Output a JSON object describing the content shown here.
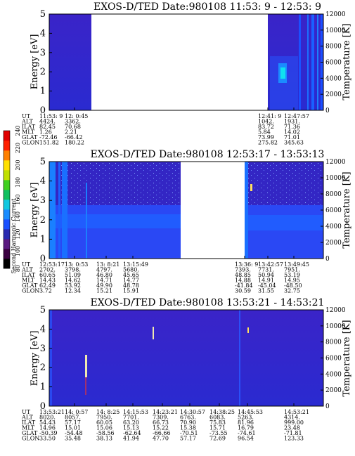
{
  "colorbar": {
    "label": "Second Harmonic Current",
    "ticks": [
      "80",
      "100",
      "120",
      "140",
      "160",
      "180",
      "200",
      "220",
      "240"
    ],
    "colors": [
      "#000000",
      "#3a0040",
      "#5a1a80",
      "#2a2ab0",
      "#1a50ff",
      "#1a8cff",
      "#10c8e0",
      "#10c060",
      "#40d020",
      "#c0e000",
      "#ffe000",
      "#ff8000",
      "#ff2000",
      "#e00000"
    ]
  },
  "panels": [
    {
      "title": "EXOS-D/TED   Date:980108  11:53: 9 - 12:53: 9",
      "ylabel": "Energy [eV]",
      "y2label": "Temperature [K]",
      "yticks": [
        "0",
        "1",
        "2",
        "3",
        "4",
        "5"
      ],
      "y2ticks": [
        "0",
        "2000",
        "4000",
        "6000",
        "8000",
        "10000",
        "12000"
      ],
      "ephem_labels": [
        "UT",
        "ALT",
        "ILAT",
        "MLT",
        "GLAT",
        "GLON"
      ],
      "ephem_cols": [
        [
          "11:53: 9",
          "4424.",
          "82.45",
          "1.26",
          "-72.46",
          "151.82"
        ],
        [
          "12: 0:45",
          "3362.",
          "70.68",
          "2.21",
          "-66.42",
          "180.22"
        ],
        [
          "12:41: 9",
          "1042.",
          "83.72",
          "5.84",
          "73.99",
          "275.82"
        ],
        [
          "12:47:57",
          "1931.",
          "71.36",
          "14.02",
          "71.01",
          "345.63"
        ]
      ]
    },
    {
      "title": "EXOS-D/TED   Date:980108  12:53:17 - 13:53:13",
      "ylabel": "Energy [eV]",
      "y2label": "Temperature [K]",
      "yticks": [
        "0",
        "1",
        "2",
        "3",
        "4",
        "5"
      ],
      "y2ticks": [
        "0",
        "2000",
        "4000",
        "6000",
        "8000",
        "10000",
        "12000"
      ],
      "ephem_labels": [
        "UT",
        "ALT",
        "ILAT",
        "MLT",
        "GLAT",
        "GLON"
      ],
      "ephem_cols": [
        [
          "12:53:17",
          "2702.",
          "60.65",
          "14.43",
          "62.49",
          "3.72"
        ],
        [
          "13: 0:53",
          "3798.",
          "51.09",
          "14.62",
          "53.92",
          "12.34"
        ],
        [
          "13: 8:21",
          "4797.",
          "46.80",
          "14.71",
          "49.90",
          "15.21"
        ],
        [
          "13:15:49",
          "5680.",
          "45.65",
          "14.77",
          "48.78",
          "15.91"
        ],
        [
          "13:36: 9",
          "7393.",
          "48.85",
          "14.88",
          "-41.84",
          "30.59"
        ],
        [
          "13:42:57",
          "7731.",
          "50.94",
          "14.91",
          "-45.04",
          "31.55"
        ],
        [
          "13:49:45",
          "7951.",
          "53.19",
          "14.95",
          "-48.50",
          "32.75"
        ]
      ]
    },
    {
      "title": "EXOS-D/TED   Date:980108  13:53:21 - 14:53:21",
      "ylabel": "Energy [eV]",
      "y2label": "Temperature [K]",
      "yticks": [
        "0",
        "1",
        "2",
        "3",
        "4",
        "5"
      ],
      "y2ticks": [
        "0",
        "2000",
        "4000",
        "6000",
        "8000",
        "10000",
        "12000"
      ],
      "ephem_labels": [
        "UT",
        "ALT",
        "ILAT",
        "MLT",
        "GLAT",
        "GLON"
      ],
      "ephem_cols": [
        [
          "13:53:21",
          "8020.",
          "54.43",
          "14.96",
          "-50.39",
          "33.50"
        ],
        [
          "14: 0:57",
          "8057.",
          "57.17",
          "15.01",
          "-54.48",
          "35.48"
        ],
        [
          "14: 8:25",
          "7950.",
          "60.05",
          "15.06",
          "-58.56",
          "38.13"
        ],
        [
          "14:15:53",
          "7701.",
          "63.20",
          "15.13",
          "-62.64",
          "41.94"
        ],
        [
          "14:23:21",
          "7309.",
          "66.73",
          "15.22",
          "-66.66",
          "47.70"
        ],
        [
          "14:30:57",
          "6763.",
          "70.90",
          "15.38",
          "-70.51",
          "57.17"
        ],
        [
          "14:38:25",
          "6083.",
          "75.83",
          "15.71",
          "-73.55",
          "72.69"
        ],
        [
          "14:45:53",
          "5263.",
          "81.96",
          "16.79",
          "-74.61",
          "96.54"
        ],
        [
          "14:53:21",
          "4314.",
          "999.00",
          "23.48",
          "-71.81",
          "123.33"
        ]
      ]
    }
  ],
  "chart_data": [
    {
      "type": "heatmap",
      "title": "EXOS-D/TED   Date:980108  11:53: 9 - 12:53: 9",
      "ylabel": "Energy [eV]",
      "y2label": "Temperature [K]",
      "ylim": [
        0,
        5
      ],
      "y2lim": [
        0,
        12000
      ],
      "x_ticks": [
        "11:53: 9",
        "12: 0:45",
        "12:41: 9",
        "12:47:57"
      ],
      "data_coverage": [
        [
          "11:53: 9",
          "12: 0:45"
        ],
        [
          "12:41: 9",
          "12:53: 9"
        ]
      ],
      "features": [
        {
          "time": "12:42",
          "energy_range": [
            1.2,
            2.2
          ],
          "level": "high (cyan)"
        }
      ],
      "dominant_level": "~130 (blue)"
    },
    {
      "type": "heatmap",
      "title": "EXOS-D/TED   Date:980108  12:53:17 - 13:53:13",
      "ylabel": "Energy [eV]",
      "y2label": "Temperature [K]",
      "ylim": [
        0,
        5
      ],
      "y2lim": [
        0,
        12000
      ],
      "x_ticks": [
        "12:53:17",
        "13: 0:53",
        "13: 8:21",
        "13:15:49",
        "13:36: 9",
        "13:42:57",
        "13:49:45"
      ],
      "data_coverage": [
        [
          "12:53:17",
          "13:22"
        ],
        [
          "13:32",
          "13:53:13"
        ]
      ],
      "features": [
        {
          "energy_range": [
            0,
            2.8
          ],
          "level": "~140 (light blue)"
        }
      ],
      "dominant_level": "~125 (blue)"
    },
    {
      "type": "heatmap",
      "title": "EXOS-D/TED   Date:980108  13:53:21 - 14:53:21",
      "ylabel": "Energy [eV]",
      "y2label": "Temperature [K]",
      "ylim": [
        0,
        5
      ],
      "y2lim": [
        0,
        12000
      ],
      "x_ticks": [
        "13:53:21",
        "14: 0:57",
        "14: 8:25",
        "14:15:53",
        "14:23:21",
        "14:30:57",
        "14:38:25",
        "14:45:53",
        "14:53:21"
      ],
      "data_coverage": [
        [
          "13:53:21",
          "14:53:21"
        ]
      ],
      "features": [
        {
          "time": "13:59",
          "energy_range": [
            1.0,
            2.9
          ],
          "level": "spike"
        },
        {
          "time": "14:12",
          "energy_range": [
            3.7,
            4.3
          ],
          "level": "spike"
        },
        {
          "time": "14:39",
          "energy_range": [
            3.8,
            3.9
          ],
          "level": "spike"
        }
      ],
      "dominant_level": "~125 (blue)"
    }
  ]
}
